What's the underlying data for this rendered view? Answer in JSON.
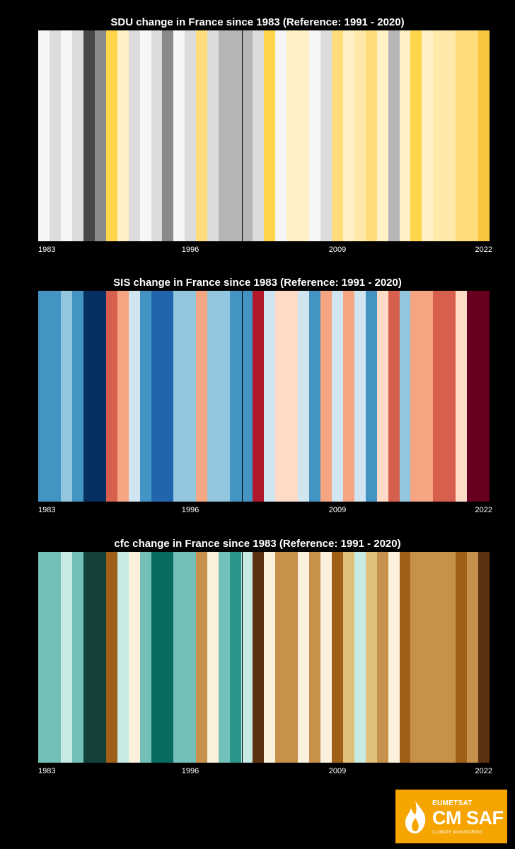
{
  "charts": [
    {
      "id": "sdu",
      "title": "SDU change in France since 1983 (Reference: 1991 - 2020)",
      "ticks": [
        "1983",
        "1996",
        "2009",
        "2022"
      ]
    },
    {
      "id": "sis",
      "title": "SIS change in France since 1983 (Reference: 1991 - 2020)",
      "ticks": [
        "1983",
        "1996",
        "2009",
        "2022"
      ]
    },
    {
      "id": "cfc",
      "title": "cfc change in France since 1983 (Reference: 1991 - 2020)",
      "ticks": [
        "1983",
        "1996",
        "2009",
        "2022"
      ]
    }
  ],
  "logo": {
    "org": "EUMETSAT",
    "brand": "CM SAF",
    "sub": "CLIMATE MONITORING"
  },
  "chart_data": [
    {
      "type": "heatmap",
      "title": "SDU change in France since 1983 (Reference: 1991 - 2020)",
      "x": [
        1983,
        1984,
        1985,
        1986,
        1987,
        1988,
        1989,
        1990,
        1991,
        1992,
        1993,
        1994,
        1995,
        1996,
        1997,
        1998,
        1999,
        2000,
        2001,
        2002,
        2003,
        2004,
        2005,
        2006,
        2007,
        2008,
        2009,
        2010,
        2011,
        2012,
        2013,
        2014,
        2015,
        2016,
        2017,
        2018,
        2019,
        2020,
        2021,
        2022
      ],
      "colors": [
        "#f6f6f6",
        "#dcdcdc",
        "#f6f6f6",
        "#dcdcdc",
        "#484848",
        "#8a8a8a",
        "#ffd54a",
        "#fff0c6",
        "#dcdcdc",
        "#f6f6f6",
        "#dcdcdc",
        "#8a8a8a",
        "#f6f6f6",
        "#dcdcdc",
        "#ffdd7a",
        "#dcdcdc",
        "#b6b6b6",
        "#b6b6b6",
        "#b6b6b6",
        "#dcdcdc",
        "#ffd54a",
        "#f6f6f6",
        "#fff0c6",
        "#fff0c6",
        "#f6f6f6",
        "#dcdcdc",
        "#ffdd7a",
        "#fff0c6",
        "#ffe9a8",
        "#ffdd7a",
        "#fff0c6",
        "#b6b6b6",
        "#fff0c6",
        "#ffd54a",
        "#fff0c6",
        "#ffe9a8",
        "#ffe9a8",
        "#ffdd7a",
        "#ffdd7a",
        "#f8c53c"
      ]
    },
    {
      "type": "heatmap",
      "title": "SIS change in France since 1983 (Reference: 1991 - 2020)",
      "x": [
        1983,
        1984,
        1985,
        1986,
        1987,
        1988,
        1989,
        1990,
        1991,
        1992,
        1993,
        1994,
        1995,
        1996,
        1997,
        1998,
        1999,
        2000,
        2001,
        2002,
        2003,
        2004,
        2005,
        2006,
        2007,
        2008,
        2009,
        2010,
        2011,
        2012,
        2013,
        2014,
        2015,
        2016,
        2017,
        2018,
        2019,
        2020,
        2021,
        2022
      ],
      "colors": [
        "#4393c3",
        "#4393c3",
        "#92c5de",
        "#4393c3",
        "#053061",
        "#053061",
        "#d6604d",
        "#f4a582",
        "#d1e5f0",
        "#4393c3",
        "#2166ac",
        "#2166ac",
        "#92c5de",
        "#92c5de",
        "#f4a582",
        "#92c5de",
        "#92c5de",
        "#4393c3",
        "#4393c3",
        "#b2182b",
        "#d1e5f0",
        "#fddbc7",
        "#fddbc7",
        "#d1e5f0",
        "#4393c3",
        "#f4a582",
        "#d1e5f0",
        "#f4a582",
        "#d1e5f0",
        "#4393c3",
        "#fddbc7",
        "#d6604d",
        "#92c5de",
        "#f4a582",
        "#f4a582",
        "#d6604d",
        "#d6604d",
        "#fddbc7",
        "#67001f",
        "#67001f"
      ]
    },
    {
      "type": "heatmap",
      "title": "cfc change in France since 1983 (Reference: 1991 - 2020)",
      "x": [
        1983,
        1984,
        1985,
        1986,
        1987,
        1988,
        1989,
        1990,
        1991,
        1992,
        1993,
        1994,
        1995,
        1996,
        1997,
        1998,
        1999,
        2000,
        2001,
        2002,
        2003,
        2004,
        2005,
        2006,
        2007,
        2008,
        2009,
        2010,
        2011,
        2012,
        2013,
        2014,
        2015,
        2016,
        2017,
        2018,
        2019,
        2020,
        2021,
        2022
      ],
      "colors": [
        "#72c0b8",
        "#72c0b8",
        "#c7eae5",
        "#72c0b8",
        "#14403a",
        "#14403a",
        "#a06018",
        "#c7eae5",
        "#faf0dc",
        "#72c0b8",
        "#076c5e",
        "#076c5e",
        "#72c0b8",
        "#72c0b8",
        "#c6914a",
        "#faf0dc",
        "#72c0b8",
        "#289688",
        "#c7eae5",
        "#5c3310",
        "#faf0dc",
        "#c6914a",
        "#c6914a",
        "#faf0dc",
        "#c6914a",
        "#faf0dc",
        "#a06018",
        "#e0c07a",
        "#c7eae5",
        "#e0c07a",
        "#c6914a",
        "#faf0dc",
        "#a06018",
        "#c6914a",
        "#c6914a",
        "#c6914a",
        "#c6914a",
        "#a06018",
        "#c6914a",
        "#5c3310"
      ]
    }
  ]
}
